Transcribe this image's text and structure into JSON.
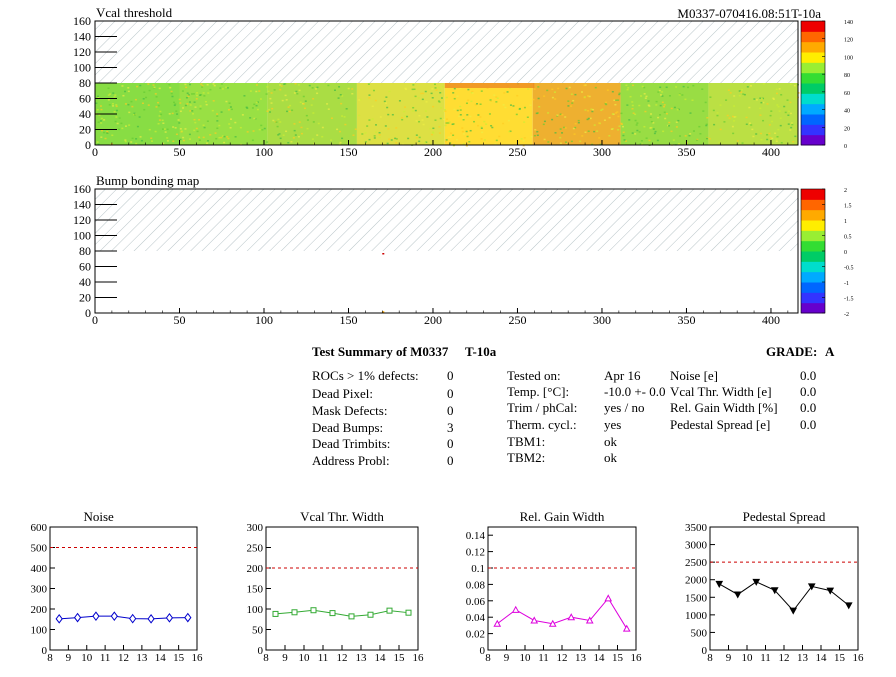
{
  "module_id": "M0337-070416.08:51T-10a",
  "maps": [
    {
      "title": "Vcal threshold",
      "xlim": [
        0,
        416
      ],
      "ylim": [
        0,
        160
      ],
      "xticks": [
        "0",
        "50",
        "100",
        "150",
        "200",
        "250",
        "300",
        "350",
        "400"
      ],
      "yticks": [
        "0",
        "20",
        "40",
        "60",
        "80",
        "100",
        "120",
        "140",
        "160"
      ],
      "colorbar_ticks": [
        "140",
        "120",
        "100",
        "80",
        "60",
        "40",
        "20",
        "0"
      ]
    },
    {
      "title": "Bump bonding map",
      "xlim": [
        0,
        416
      ],
      "ylim": [
        0,
        160
      ],
      "xticks": [
        "0",
        "50",
        "100",
        "150",
        "200",
        "250",
        "300",
        "350",
        "400"
      ],
      "yticks": [
        "0",
        "20",
        "40",
        "60",
        "80",
        "100",
        "120",
        "140",
        "160"
      ],
      "colorbar_ticks": [
        "2",
        "1.5",
        "1",
        "0.5",
        "0",
        "-0.5",
        "-1",
        "-1.5",
        "-2"
      ]
    }
  ],
  "summary": {
    "title": "Test Summary of M0337",
    "tag": "T-10a",
    "grade_label": "GRADE:",
    "grade": "A",
    "left": [
      {
        "label": "ROCs > 1% defects:",
        "value": "0"
      },
      {
        "label": "Dead Pixel:",
        "value": "0"
      },
      {
        "label": "Mask Defects:",
        "value": "0"
      },
      {
        "label": "Dead Bumps:",
        "value": "3"
      },
      {
        "label": "Dead Trimbits:",
        "value": "0"
      },
      {
        "label": "Address Probl:",
        "value": "0"
      }
    ],
    "middle": [
      {
        "label": "Tested on:",
        "value": "Apr 16"
      },
      {
        "label": "Temp. [°C]:",
        "value": "-10.0 +- 0.0"
      },
      {
        "label": "Trim / phCal:",
        "value": "yes / no"
      },
      {
        "label": "Therm. cycl.:",
        "value": "yes"
      },
      {
        "label": "TBM1:",
        "value": "ok"
      },
      {
        "label": "TBM2:",
        "value": "ok"
      }
    ],
    "right": [
      {
        "label": "Noise [e]",
        "value": "0.0"
      },
      {
        "label": "Vcal Thr. Width [e]",
        "value": "0.0"
      },
      {
        "label": "Rel. Gain Width [%]",
        "value": "0.0"
      },
      {
        "label": "Pedestal Spread [e]",
        "value": "0.0"
      }
    ]
  },
  "chart_data": [
    {
      "type": "line",
      "title": "Noise",
      "x": [
        8.5,
        9.5,
        10.5,
        11.5,
        12.5,
        13.5,
        14.5,
        15.5
      ],
      "values": [
        152,
        158,
        165,
        165,
        153,
        152,
        157,
        158
      ],
      "ylim": [
        0,
        600
      ],
      "xlim": [
        8,
        16
      ],
      "threshold": 500,
      "color": "#0000cc",
      "marker": "diamond",
      "xticks": [
        "8",
        "9",
        "10",
        "11",
        "12",
        "13",
        "14",
        "15",
        "16"
      ],
      "yticks": [
        "0",
        "100",
        "200",
        "300",
        "400",
        "500",
        "600"
      ]
    },
    {
      "type": "line",
      "title": "Vcal Thr. Width",
      "x": [
        8.5,
        9.5,
        10.5,
        11.5,
        12.5,
        13.5,
        14.5,
        15.5
      ],
      "values": [
        88,
        92,
        97,
        90,
        82,
        86,
        96,
        91
      ],
      "ylim": [
        0,
        300
      ],
      "xlim": [
        8,
        16
      ],
      "threshold": 200,
      "color": "#33aa33",
      "marker": "square",
      "xticks": [
        "8",
        "9",
        "10",
        "11",
        "12",
        "13",
        "14",
        "15",
        "16"
      ],
      "yticks": [
        "0",
        "50",
        "100",
        "150",
        "200",
        "250",
        "300"
      ]
    },
    {
      "type": "line",
      "title": "Rel. Gain Width",
      "x": [
        8.5,
        9.5,
        10.5,
        11.5,
        12.5,
        13.5,
        14.5,
        15.5
      ],
      "values": [
        0.032,
        0.049,
        0.036,
        0.032,
        0.04,
        0.036,
        0.063,
        0.026
      ],
      "ylim": [
        0,
        0.15
      ],
      "xlim": [
        8,
        16
      ],
      "threshold": 0.1,
      "color": "#dd00dd",
      "marker": "triangle",
      "xticks": [
        "8",
        "9",
        "10",
        "11",
        "12",
        "13",
        "14",
        "15",
        "16"
      ],
      "yticks": [
        "0",
        "0.02",
        "0.04",
        "0.06",
        "0.08",
        "0.1",
        "0.12",
        "0.14"
      ],
      "ytick_values": [
        0,
        0.02,
        0.04,
        0.06,
        0.08,
        0.1,
        0.12,
        0.14
      ]
    },
    {
      "type": "line",
      "title": "Pedestal Spread",
      "x": [
        8.5,
        9.5,
        10.5,
        11.5,
        12.5,
        13.5,
        14.5,
        15.5
      ],
      "values": [
        1880,
        1580,
        1940,
        1700,
        1120,
        1810,
        1690,
        1270
      ],
      "ylim": [
        0,
        3500
      ],
      "xlim": [
        8,
        16
      ],
      "threshold": 2500,
      "color": "#000000",
      "marker": "triangle-down",
      "xticks": [
        "8",
        "9",
        "10",
        "11",
        "12",
        "13",
        "14",
        "15",
        "16"
      ],
      "yticks": [
        "0",
        "500",
        "1000",
        "1500",
        "2000",
        "2500",
        "3000",
        "3500"
      ]
    }
  ]
}
